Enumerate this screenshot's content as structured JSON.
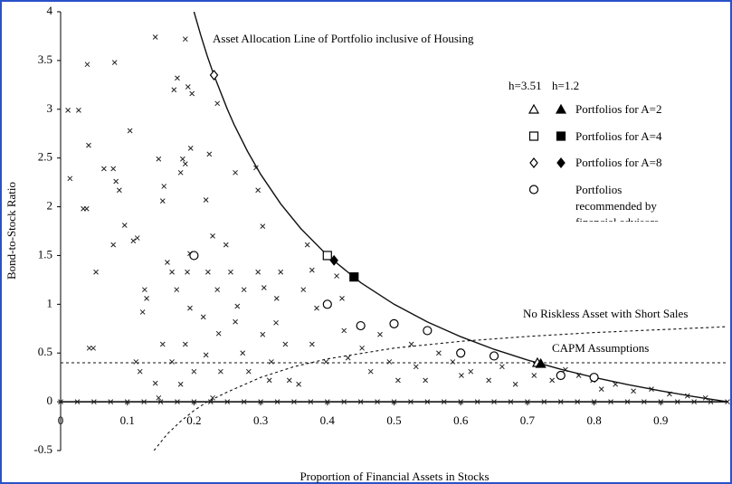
{
  "chart_data": {
    "type": "scatter",
    "xlabel": "Proportion of Financial Assets in Stocks",
    "ylabel": "Bond-to-Stock Ratio",
    "xlim": [
      0,
      1
    ],
    "ylim": [
      -0.5,
      4
    ],
    "xticks": [
      0,
      0.1,
      0.2,
      0.3,
      0.4,
      0.5,
      0.6,
      0.7,
      0.8,
      0.9
    ],
    "yticks": [
      -0.5,
      0,
      0.5,
      1,
      1.5,
      2,
      2.5,
      3,
      3.5,
      4
    ],
    "annotations": [
      "Asset Allocation Line of Portfolio inclusive of Housing",
      "No Riskless Asset with Short Sales",
      "CAPM Assumptions"
    ],
    "legend_header": [
      "h=3.51",
      "h=1.2"
    ],
    "series": [
      {
        "kind": "scatter",
        "marker": "x",
        "color": "#222222",
        "x": [
          0.04,
          0.027,
          0.011,
          0.014,
          0.042,
          0.034,
          0.039,
          0.053,
          0.049,
          0.043,
          0.081,
          0.079,
          0.083,
          0.088,
          0.065,
          0.079,
          0.096,
          0.104,
          0.109,
          0.115,
          0.113,
          0.119,
          0.126,
          0.123,
          0.129,
          0.142,
          0.147,
          0.153,
          0.155,
          0.16,
          0.167,
          0.153,
          0.167,
          0.142,
          0.147,
          0.175,
          0.17,
          0.187,
          0.183,
          0.187,
          0.18,
          0.191,
          0.197,
          0.195,
          0.194,
          0.19,
          0.174,
          0.194,
          0.187,
          0.2,
          0.18,
          0.223,
          0.235,
          0.218,
          0.228,
          0.221,
          0.235,
          0.214,
          0.237,
          0.218,
          0.24,
          0.228,
          0.262,
          0.248,
          0.255,
          0.265,
          0.275,
          0.262,
          0.273,
          0.282,
          0.293,
          0.296,
          0.303,
          0.296,
          0.305,
          0.303,
          0.316,
          0.313,
          0.33,
          0.324,
          0.323,
          0.337,
          0.343,
          0.37,
          0.377,
          0.364,
          0.384,
          0.377,
          0.398,
          0.357,
          0.414,
          0.422,
          0.425,
          0.431,
          0.452,
          0.465,
          0.479,
          0.493,
          0.506,
          0.526,
          0.533,
          0.547,
          0.567,
          0.588,
          0.601,
          0.615,
          0.642,
          0.662,
          0.682,
          0.71,
          0.737,
          0.757,
          0.777,
          0.798,
          0.811,
          0.832,
          0.859,
          0.886,
          0.913,
          0.94,
          0.967,
          0,
          0.025,
          0.05,
          0.075,
          0.1,
          0.125,
          0.15,
          0.175,
          0.2,
          0.225,
          0.25,
          0.275,
          0.3,
          0.325,
          0.35,
          0.375,
          0.4,
          0.425,
          0.45,
          0.475,
          0.5,
          0.525,
          0.55,
          0.575,
          0.6,
          0.625,
          0.65,
          0.675,
          0.7,
          0.725,
          0.75,
          0.775,
          0.8,
          0.825,
          0.85,
          0.875,
          0.9,
          0.925,
          0.95,
          0.975,
          1
        ],
        "values": [
          3.46,
          2.99,
          2.99,
          2.29,
          2.63,
          1.98,
          1.98,
          1.33,
          0.55,
          0.55,
          3.48,
          2.39,
          2.26,
          2.17,
          2.39,
          1.61,
          1.81,
          2.78,
          1.65,
          1.68,
          0.41,
          0.31,
          1.15,
          0.92,
          1.06,
          3.74,
          2.49,
          2.06,
          2.21,
          1.43,
          1.33,
          0.59,
          0.41,
          0.19,
          0.04,
          3.32,
          3.2,
          3.72,
          2.49,
          2.44,
          2.35,
          3.23,
          3.16,
          2.6,
          1.52,
          1.33,
          1.15,
          0.96,
          0.59,
          0.31,
          0.18,
          2.54,
          3.06,
          2.07,
          1.7,
          1.33,
          1.15,
          0.87,
          0.7,
          0.48,
          0.31,
          0.04,
          2.35,
          1.61,
          1.33,
          0.98,
          1.15,
          0.82,
          0.5,
          0.31,
          2.4,
          2.17,
          1.8,
          1.33,
          1.17,
          0.69,
          0.41,
          0.22,
          1.33,
          1.06,
          0.81,
          0.59,
          0.22,
          1.61,
          1.35,
          1.15,
          0.96,
          0.59,
          0.41,
          0.18,
          1.29,
          1.06,
          0.73,
          0.45,
          0.55,
          0.31,
          0.69,
          0.41,
          0.22,
          0.59,
          0.36,
          0.22,
          0.5,
          0.41,
          0.27,
          0.31,
          0.22,
          0.36,
          0.18,
          0.27,
          0.22,
          0.33,
          0.27,
          0.22,
          0.13,
          0.18,
          0.11,
          0.13,
          0.08,
          0.06,
          0.04,
          0,
          0,
          0,
          0,
          0,
          0,
          0,
          0,
          0,
          0,
          0,
          0,
          0,
          0,
          0,
          0,
          0,
          0,
          0,
          0,
          0,
          0,
          0,
          0,
          0,
          0,
          0,
          0,
          0,
          0,
          0,
          0,
          0,
          0,
          0,
          0,
          0,
          0,
          0,
          0,
          0
        ]
      },
      {
        "kind": "line",
        "style": "solid",
        "color": "#111111",
        "x": [
          0.2,
          0.21,
          0.22,
          0.23,
          0.25,
          0.26,
          0.28,
          0.3,
          0.33,
          0.36,
          0.4,
          0.45,
          0.5,
          0.55,
          0.6,
          0.65,
          0.7,
          0.75,
          0.8,
          0.85,
          0.9,
          0.95,
          1
        ],
        "values": [
          4,
          3.762,
          3.545,
          3.348,
          3,
          2.846,
          2.571,
          2.333,
          2.03,
          1.778,
          1.5,
          1.222,
          1,
          0.818,
          0.667,
          0.538,
          0.429,
          0.333,
          0.25,
          0.176,
          0.111,
          0.053,
          0
        ]
      },
      {
        "kind": "line",
        "style": "dashed",
        "color": "#111111",
        "x": [
          0.14,
          0.16,
          0.18,
          0.2,
          0.22,
          0.25,
          0.3,
          0.35,
          0.4,
          0.5,
          0.6,
          0.7,
          0.8,
          0.9,
          1
        ],
        "values": [
          -0.5,
          -0.33,
          -0.2,
          -0.09,
          0,
          0.1,
          0.25,
          0.36,
          0.44,
          0.55,
          0.62,
          0.67,
          0.71,
          0.74,
          0.77
        ]
      },
      {
        "kind": "line",
        "style": "dashed",
        "color": "#111111",
        "x": [
          0,
          1
        ],
        "values": [
          0.4,
          0.4
        ]
      },
      {
        "name": "Portfolios for A=2",
        "marker": "triangle",
        "color": "#000000",
        "x": [
          0.715,
          0.72
        ],
        "values": [
          0.4,
          0.39
        ],
        "filled": [
          false,
          true
        ]
      },
      {
        "name": "Portfolios for A=4",
        "marker": "square",
        "color": "#000000",
        "x": [
          0.4,
          0.44
        ],
        "values": [
          1.5,
          1.28
        ],
        "filled": [
          false,
          true
        ]
      },
      {
        "name": "Portfolios for A=8",
        "marker": "diamond",
        "color": "#000000",
        "x": [
          0.23,
          0.41
        ],
        "values": [
          3.35,
          1.45
        ],
        "filled": [
          false,
          true
        ]
      },
      {
        "name": "Portfolios recommended by financial advisors",
        "marker": "circle",
        "color": "#000000",
        "x": [
          0.2,
          0.4,
          0.45,
          0.5,
          0.55,
          0.6,
          0.65,
          0.75,
          0.8
        ],
        "values": [
          1.5,
          1.0,
          0.78,
          0.8,
          0.73,
          0.5,
          0.47,
          0.27,
          0.25
        ],
        "filled": [
          false,
          false,
          false,
          false,
          false,
          false,
          false,
          false,
          false
        ]
      }
    ]
  }
}
